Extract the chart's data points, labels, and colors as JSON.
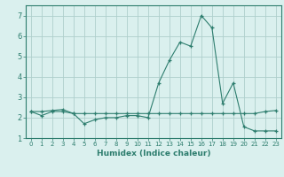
{
  "xlabel": "Humidex (Indice chaleur)",
  "x": [
    0,
    1,
    2,
    3,
    4,
    5,
    6,
    7,
    8,
    9,
    10,
    11,
    12,
    13,
    14,
    15,
    16,
    17,
    18,
    19,
    20,
    21,
    22,
    23
  ],
  "line1": [
    2.3,
    2.1,
    2.3,
    2.3,
    2.2,
    1.7,
    1.9,
    2.0,
    2.0,
    2.1,
    2.1,
    2.0,
    3.7,
    4.8,
    5.7,
    5.5,
    7.0,
    6.4,
    2.7,
    3.7,
    1.55,
    1.35,
    1.35,
    1.35
  ],
  "line2": [
    2.3,
    2.3,
    2.35,
    2.4,
    2.2,
    2.2,
    2.2,
    2.2,
    2.2,
    2.2,
    2.2,
    2.2,
    2.2,
    2.2,
    2.2,
    2.2,
    2.2,
    2.2,
    2.2,
    2.2,
    2.2,
    2.2,
    2.3,
    2.35
  ],
  "ylim": [
    1.0,
    7.5
  ],
  "xlim": [
    -0.5,
    23.5
  ],
  "yticks": [
    1,
    2,
    3,
    4,
    5,
    6,
    7
  ],
  "xticks": [
    0,
    1,
    2,
    3,
    4,
    5,
    6,
    7,
    8,
    9,
    10,
    11,
    12,
    13,
    14,
    15,
    16,
    17,
    18,
    19,
    20,
    21,
    22,
    23
  ],
  "line_color": "#2d7d6e",
  "bg_color": "#daf0ee",
  "grid_color": "#aecfcc"
}
